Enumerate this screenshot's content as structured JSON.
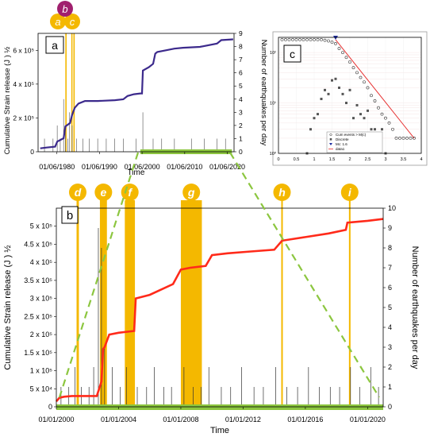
{
  "chart_data": [
    {
      "type": "line",
      "panel_label": "a",
      "xlabel": "Time",
      "ylabel_left": "Cumulative Strain release (J ) ½",
      "ylabel_right": "Number of earthquakes per day",
      "xlim": [
        1976,
        2022
      ],
      "ylim_left": [
        0,
        700000
      ],
      "ylim_right": [
        0,
        9
      ],
      "x_ticks": [
        "01/06/1980",
        "01/06/1990",
        "01/06/2000",
        "01/06/2010",
        "01/06/2020"
      ],
      "x_tick_values": [
        1980.42,
        1990.42,
        2000.42,
        2010.42,
        2020.42
      ],
      "y_left_ticks": [
        "0",
        "2 x 10⁵",
        "4 x 10⁵",
        "6 x 10⁵"
      ],
      "y_left_tick_values": [
        0,
        200000,
        400000,
        600000
      ],
      "y_right_ticks": [
        "0",
        "1",
        "2",
        "3",
        "4",
        "5",
        "6",
        "7",
        "8",
        "9"
      ],
      "series": [
        {
          "color": "#3c2a8c",
          "x": [
            1976.5,
            1978,
            1980,
            1980.5,
            1982,
            1982.4,
            1983.5,
            1984,
            1984.6,
            1985.5,
            1987,
            1990,
            1994,
            1996,
            1997,
            1998.5,
            2000,
            2000.4,
            2000.6,
            2002,
            2003,
            2003.5,
            2004,
            2006,
            2008,
            2010,
            2014,
            2018,
            2019,
            2021.8
          ],
          "y": [
            20000,
            25000,
            30000,
            60000,
            80000,
            150000,
            170000,
            220000,
            260000,
            285000,
            300000,
            300000,
            305000,
            310000,
            330000,
            340000,
            345000,
            345000,
            480000,
            500000,
            520000,
            580000,
            590000,
            600000,
            610000,
            615000,
            620000,
            640000,
            660000,
            665000
          ]
        }
      ],
      "bar_counts": {
        "x": [
          1977.5,
          1979.5,
          1980.5,
          1981.2,
          1982,
          1982.4,
          1983,
          1983.4,
          1984,
          1985,
          1986.5,
          1988,
          1990,
          1992,
          1994,
          1996,
          1999,
          2000.6,
          2003,
          2005,
          2008,
          2012,
          2015,
          2018,
          2020
        ],
        "y": [
          1,
          1,
          2,
          1,
          4,
          2,
          1,
          3,
          2,
          1,
          1,
          1,
          1,
          1,
          1,
          1,
          1,
          3,
          1,
          1,
          1,
          1,
          1,
          1,
          1
        ]
      },
      "highlight_bands": [
        {
          "label": "a",
          "x": [
            1982.4,
            1982.7
          ]
        },
        {
          "label": "b",
          "x": [
            1983.8,
            1984.0
          ]
        },
        {
          "label": "c",
          "x": [
            1984.3,
            1984.6
          ]
        }
      ],
      "zoom_bar": [
        2000,
        2021.5
      ],
      "accent": "#f4b800",
      "zoom_color": "#8cc63f",
      "label_b_color": "#a0206e"
    },
    {
      "type": "line",
      "panel_label": "b",
      "xlabel": "Time",
      "ylabel_left": "Cumulative Strain release (J ) ½",
      "ylabel_right": "Number of earthquakes per day",
      "xlim": [
        2000,
        2021
      ],
      "ylim_left": [
        0,
        550000
      ],
      "ylim_right": [
        0,
        10
      ],
      "x_ticks": [
        "01/01/2000",
        "01/01/2004",
        "01/01/2008",
        "01/01/2012",
        "01/01/2016",
        "01/01/2020"
      ],
      "x_tick_values": [
        2000,
        2004,
        2008,
        2012,
        2016,
        2020
      ],
      "y_left_ticks": [
        "0",
        "5 x 10⁴",
        "1 x 10⁵",
        "1.5 x 10⁵",
        "2 x 10⁵",
        "2.5 x 10⁵",
        "3 x 10⁵",
        "3.5 x 10⁵",
        "4 x 10⁵",
        "4.5 x 10⁵",
        "5 x 10⁵"
      ],
      "y_left_tick_values": [
        0,
        50000,
        100000,
        150000,
        200000,
        250000,
        300000,
        350000,
        400000,
        450000,
        500000
      ],
      "y_right_ticks": [
        "0",
        "1",
        "2",
        "3",
        "4",
        "5",
        "6",
        "7",
        "8",
        "9",
        "10"
      ],
      "series": [
        {
          "color": "#ff2a1a",
          "x": [
            2000,
            2000.2,
            2000.5,
            2001,
            2002.6,
            2002.9,
            2003,
            2003.1,
            2003.4,
            2004,
            2005,
            2005.1,
            2006,
            2007.5,
            2008,
            2008.6,
            2009.6,
            2010,
            2011,
            2012.5,
            2014,
            2014.5,
            2016,
            2017.5,
            2018.6,
            2018.7,
            2020,
            2021
          ],
          "y": [
            15000,
            25000,
            28000,
            30000,
            30000,
            70000,
            160000,
            165000,
            200000,
            205000,
            210000,
            300000,
            310000,
            340000,
            380000,
            385000,
            390000,
            420000,
            425000,
            430000,
            435000,
            460000,
            470000,
            480000,
            490000,
            510000,
            515000,
            520000
          ]
        }
      ],
      "bar_counts": {
        "x": [
          2000.3,
          2000.8,
          2001.2,
          2001.6,
          2002.1,
          2002.4,
          2002.7,
          2002.9,
          2003.1,
          2003.6,
          2004.1,
          2004.5,
          2005.2,
          2005.8,
          2006.3,
          2006.9,
          2007.4,
          2008.2,
          2008.8,
          2009.3,
          2009.8,
          2010.6,
          2011.2,
          2011.9,
          2012.7,
          2013.3,
          2014.1,
          2014.8,
          2015.5,
          2016.2,
          2016.9,
          2017.6,
          2018.2,
          2018.9,
          2019.5,
          2020.2,
          2020.7
        ],
        "y": [
          1,
          1,
          2,
          1,
          1,
          2,
          9,
          8,
          3,
          2,
          1,
          2,
          1,
          1,
          2,
          1,
          1,
          2,
          1,
          1,
          2,
          1,
          1,
          2,
          1,
          1,
          2,
          1,
          1,
          2,
          1,
          1,
          1,
          2,
          1,
          2,
          1
        ]
      },
      "highlight_bands": [
        {
          "label": "d",
          "x": [
            2001.3,
            2001.45
          ]
        },
        {
          "label": "e",
          "x": [
            2002.8,
            2003.25
          ]
        },
        {
          "label": "f",
          "x": [
            2004.4,
            2005.05
          ]
        },
        {
          "label": "g",
          "x": [
            2008.0,
            2009.35
          ]
        },
        {
          "label": "h",
          "x": [
            2014.45,
            2014.55
          ]
        },
        {
          "label": "i",
          "x": [
            2018.8,
            2018.9
          ]
        }
      ],
      "accent": "#f4b800",
      "zoom_color": "#8cc63f"
    },
    {
      "type": "scatter",
      "panel_label": "c",
      "xlim": [
        0,
        4
      ],
      "ylim_log": [
        1,
        200
      ],
      "x_ticks": [
        "0",
        "0.5",
        "1",
        "1.5",
        "2",
        "2.5",
        "3",
        "3.5",
        "4"
      ],
      "x_tick_values": [
        0,
        0.5,
        1,
        1.5,
        2,
        2.5,
        3,
        3.5,
        4
      ],
      "y_ticks": [
        "10⁰",
        "10¹",
        "10²"
      ],
      "y_tick_values": [
        1,
        10,
        100
      ],
      "legend": [
        "Cum events > M(c)",
        "Discrete",
        "Mc: 1.6",
        "data1"
      ],
      "series": [
        {
          "marker": "circle",
          "x": [
            0.1,
            0.2,
            0.3,
            0.4,
            0.5,
            0.6,
            0.7,
            0.8,
            0.9,
            1.0,
            1.1,
            1.2,
            1.3,
            1.4,
            1.5,
            1.6,
            1.7,
            1.8,
            1.9,
            2.0,
            2.1,
            2.2,
            2.3,
            2.4,
            2.5,
            2.6,
            2.7,
            2.8,
            2.9,
            3.0,
            3.1,
            3.2,
            3.3,
            3.4,
            3.5,
            3.6,
            3.7,
            3.8
          ],
          "y": [
            180,
            180,
            180,
            180,
            180,
            180,
            180,
            180,
            180,
            180,
            180,
            180,
            175,
            170,
            160,
            150,
            120,
            100,
            80,
            65,
            50,
            40,
            32,
            26,
            20,
            14,
            11,
            8,
            6,
            5,
            4,
            3,
            2,
            2,
            2,
            2,
            2,
            2
          ]
        },
        {
          "marker": "square",
          "x": [
            0.8,
            0.9,
            1.0,
            1.1,
            1.2,
            1.3,
            1.4,
            1.5,
            1.6,
            1.7,
            1.8,
            1.9,
            2.0,
            2.1,
            2.2,
            2.3,
            2.4,
            2.5,
            2.6,
            2.7,
            2.8,
            2.9,
            3.0
          ],
          "y": [
            1,
            3,
            5,
            6,
            12,
            18,
            15,
            28,
            30,
            20,
            15,
            10,
            18,
            5,
            9,
            6,
            5,
            7,
            3,
            3,
            2,
            3,
            1
          ]
        },
        {
          "marker": "line",
          "x": [
            1.6,
            3.8
          ],
          "y": [
            180,
            2
          ]
        }
      ],
      "mc_value": 1.6,
      "fit_color": "#e63030",
      "mc_color": "#1a2aa0"
    }
  ]
}
